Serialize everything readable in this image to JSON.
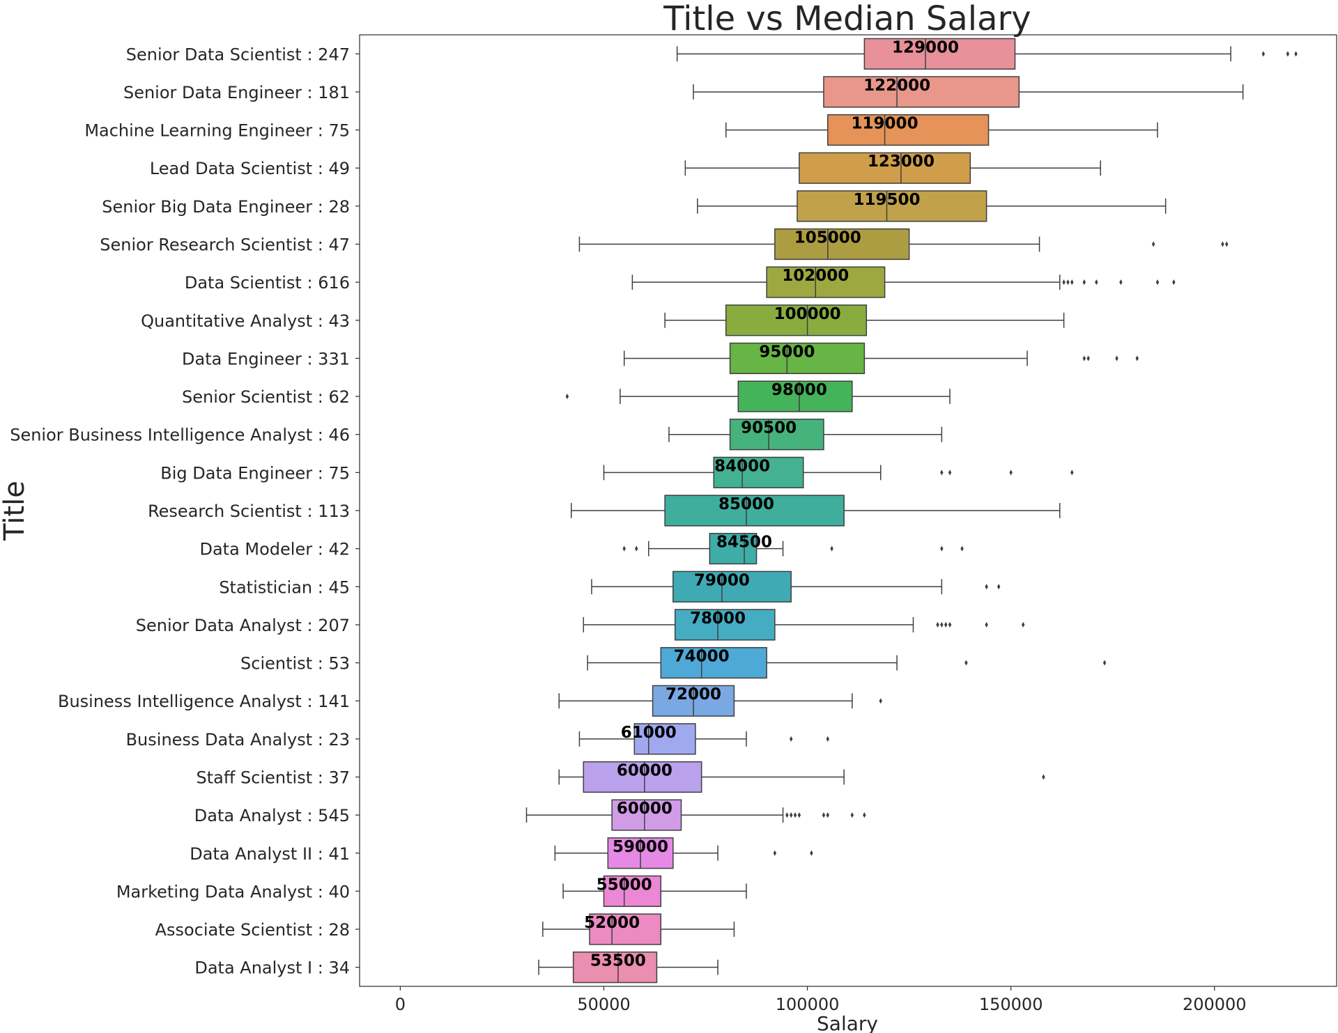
{
  "chart_data": {
    "type": "boxplot",
    "orientation": "horizontal",
    "title": "Title vs Median Salary",
    "xlabel": "Salary",
    "ylabel": "Title",
    "xlim": [
      -10000,
      230000
    ],
    "xticks": [
      0,
      50000,
      100000,
      150000,
      200000
    ],
    "xtick_labels": [
      "0",
      "50000",
      "100000",
      "150000",
      "200000"
    ],
    "grid": false,
    "legend": "none",
    "categories": [
      "Senior Data Scientist : 247",
      "Senior Data Engineer : 181",
      "Machine Learning Engineer : 75",
      "Lead Data Scientist : 49",
      "Senior Big Data Engineer : 28",
      "Senior Research Scientist : 47",
      "Data Scientist : 616",
      "Quantitative Analyst : 43",
      "Data Engineer : 331",
      "Senior Scientist : 62",
      "Senior Business Intelligence Analyst : 46",
      "Big Data Engineer : 75",
      "Research Scientist : 113",
      "Data Modeler : 42",
      "Statistician : 45",
      "Senior Data Analyst : 207",
      "Scientist : 53",
      "Business Intelligence Analyst : 141",
      "Business Data Analyst : 23",
      "Staff Scientist : 37",
      "Data Analyst : 545",
      "Data Analyst II : 41",
      "Marketing Data Analyst : 40",
      "Associate Scientist : 28",
      "Data Analyst I : 34"
    ],
    "boxes": [
      {
        "whisker_low": 68000,
        "q1": 114000,
        "median": 129000,
        "q3": 151000,
        "whisker_high": 204000,
        "outliers": [
          212000,
          218000,
          220000
        ],
        "median_label": "129000",
        "color": "#e8919b"
      },
      {
        "whisker_low": 72000,
        "q1": 104000,
        "median": 122000,
        "q3": 152000,
        "whisker_high": 207000,
        "outliers": [],
        "median_label": "122000",
        "color": "#e8978a"
      },
      {
        "whisker_low": 80000,
        "q1": 105000,
        "median": 119000,
        "q3": 144500,
        "whisker_high": 186000,
        "outliers": [],
        "median_label": "119000",
        "color": "#e59358"
      },
      {
        "whisker_low": 70000,
        "q1": 98000,
        "median": 123000,
        "q3": 140000,
        "whisker_high": 172000,
        "outliers": [],
        "median_label": "123000",
        "color": "#d09e4a"
      },
      {
        "whisker_low": 73000,
        "q1": 97500,
        "median": 119500,
        "q3": 144000,
        "whisker_high": 188000,
        "outliers": [],
        "median_label": "119500",
        "color": "#c1a24a"
      },
      {
        "whisker_low": 44000,
        "q1": 92000,
        "median": 105000,
        "q3": 125000,
        "whisker_high": 157000,
        "outliers": [
          185000,
          202000,
          203000
        ],
        "median_label": "105000",
        "color": "#ad9d42"
      },
      {
        "whisker_low": 57000,
        "q1": 90000,
        "median": 102000,
        "q3": 119000,
        "whisker_high": 162000,
        "outliers": [
          163000,
          164000,
          165000,
          168000,
          171000,
          177000,
          186000,
          190000
        ],
        "median_label": "102000",
        "color": "#9ea840"
      },
      {
        "whisker_low": 65000,
        "q1": 80000,
        "median": 100000,
        "q3": 114500,
        "whisker_high": 163000,
        "outliers": [],
        "median_label": "100000",
        "color": "#88ad3e"
      },
      {
        "whisker_low": 55000,
        "q1": 81000,
        "median": 95000,
        "q3": 114000,
        "whisker_high": 154000,
        "outliers": [
          168000,
          169000,
          176000,
          181000
        ],
        "median_label": "95000",
        "color": "#67b544"
      },
      {
        "whisker_low": 54000,
        "q1": 83000,
        "median": 98000,
        "q3": 111000,
        "whisker_high": 135000,
        "outliers": [
          41000
        ],
        "median_label": "98000",
        "color": "#45b359"
      },
      {
        "whisker_low": 66000,
        "q1": 81000,
        "median": 90500,
        "q3": 104000,
        "whisker_high": 133000,
        "outliers": [],
        "median_label": "90500",
        "color": "#46b37c"
      },
      {
        "whisker_low": 50000,
        "q1": 77000,
        "median": 84000,
        "q3": 99000,
        "whisker_high": 118000,
        "outliers": [
          133000,
          135000,
          150000,
          165000
        ],
        "median_label": "84000",
        "color": "#43b192"
      },
      {
        "whisker_low": 42000,
        "q1": 65000,
        "median": 85000,
        "q3": 109000,
        "whisker_high": 162000,
        "outliers": [],
        "median_label": "85000",
        "color": "#3fae9d"
      },
      {
        "whisker_low": 61000,
        "q1": 76000,
        "median": 84500,
        "q3": 87500,
        "whisker_high": 94000,
        "outliers": [
          55000,
          58000,
          106000,
          133000,
          138000
        ],
        "median_label": "84500",
        "color": "#3eada8"
      },
      {
        "whisker_low": 47000,
        "q1": 67000,
        "median": 79000,
        "q3": 96000,
        "whisker_high": 133000,
        "outliers": [
          144000,
          147000
        ],
        "median_label": "79000",
        "color": "#3faab4"
      },
      {
        "whisker_low": 45000,
        "q1": 67500,
        "median": 78000,
        "q3": 92000,
        "whisker_high": 126000,
        "outliers": [
          132000,
          133000,
          134000,
          135000,
          144000,
          153000
        ],
        "median_label": "78000",
        "color": "#44adc2"
      },
      {
        "whisker_low": 46000,
        "q1": 64000,
        "median": 74000,
        "q3": 90000,
        "whisker_high": 122000,
        "outliers": [
          139000,
          173000
        ],
        "median_label": "74000",
        "color": "#4ea9d6"
      },
      {
        "whisker_low": 39000,
        "q1": 62000,
        "median": 72000,
        "q3": 82000,
        "whisker_high": 111000,
        "outliers": [
          118000
        ],
        "median_label": "72000",
        "color": "#7aa8e3"
      },
      {
        "whisker_low": 44000,
        "q1": 57500,
        "median": 61000,
        "q3": 72500,
        "whisker_high": 85000,
        "outliers": [
          96000,
          105000
        ],
        "median_label": "61000",
        "color": "#a0a8ee"
      },
      {
        "whisker_low": 39000,
        "q1": 45000,
        "median": 60000,
        "q3": 74000,
        "whisker_high": 109000,
        "outliers": [
          158000
        ],
        "median_label": "60000",
        "color": "#b9a1ec"
      },
      {
        "whisker_low": 31000,
        "q1": 52000,
        "median": 60000,
        "q3": 69000,
        "whisker_high": 94000,
        "outliers": [
          95000,
          96000,
          97000,
          98000,
          104000,
          105000,
          111000,
          114000
        ],
        "median_label": "60000",
        "color": "#d09ce8"
      },
      {
        "whisker_low": 38000,
        "q1": 51000,
        "median": 59000,
        "q3": 67000,
        "whisker_high": 78000,
        "outliers": [
          92000,
          101000
        ],
        "median_label": "59000",
        "color": "#e589e5"
      },
      {
        "whisker_low": 40000,
        "q1": 50000,
        "median": 55000,
        "q3": 64000,
        "whisker_high": 85000,
        "outliers": [],
        "median_label": "55000",
        "color": "#eb87d5"
      },
      {
        "whisker_low": 35000,
        "q1": 46500,
        "median": 52000,
        "q3": 64000,
        "whisker_high": 82000,
        "outliers": [],
        "median_label": "52000",
        "color": "#eb8ac3"
      },
      {
        "whisker_low": 34000,
        "q1": 42500,
        "median": 53500,
        "q3": 63000,
        "whisker_high": 78000,
        "outliers": [],
        "median_label": "53500",
        "color": "#ea8faf"
      }
    ]
  }
}
